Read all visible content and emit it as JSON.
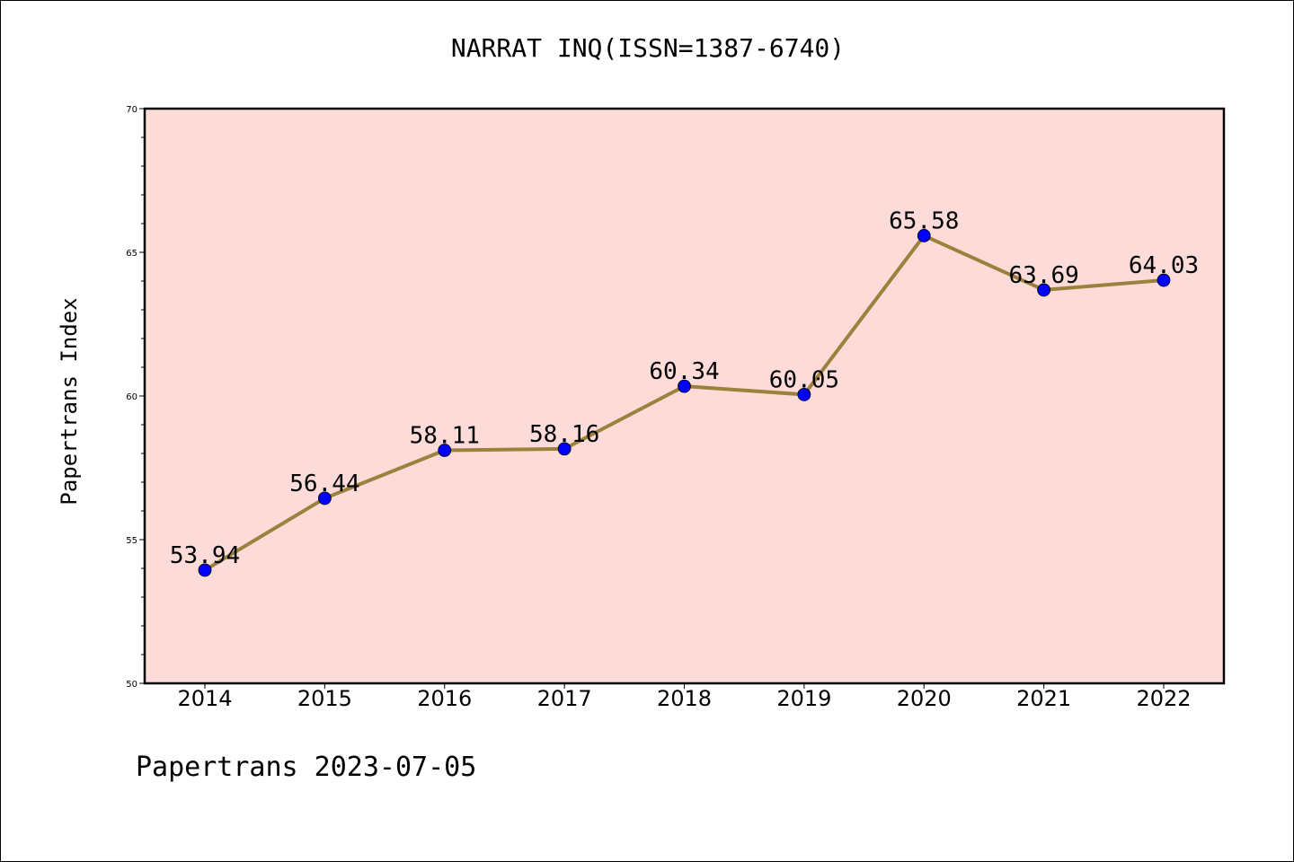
{
  "chart_data": {
    "type": "line",
    "title": "NARRAT INQ(ISSN=1387-6740)",
    "ylabel": "Papertrans Index",
    "xlabel": "",
    "x": [
      "2014",
      "2015",
      "2016",
      "2017",
      "2018",
      "2019",
      "2020",
      "2021",
      "2022"
    ],
    "series": [
      {
        "values": [
          53.94,
          56.44,
          58.11,
          58.16,
          60.34,
          60.05,
          65.58,
          63.69,
          64.03
        ],
        "labels": [
          "53.94",
          "56.44",
          "58.11",
          "58.16",
          "60.34",
          "60.05",
          "65.58",
          "63.69",
          "64.03"
        ]
      }
    ],
    "ylim": [
      50,
      70
    ],
    "y_ticks": [
      "50",
      "55",
      "60",
      "65",
      "70"
    ],
    "grid": false,
    "colors": {
      "plot_background": "#fddbd9",
      "line": "#9b813c",
      "marker": "#0000ff"
    }
  },
  "footer": "Papertrans 2023-07-05"
}
